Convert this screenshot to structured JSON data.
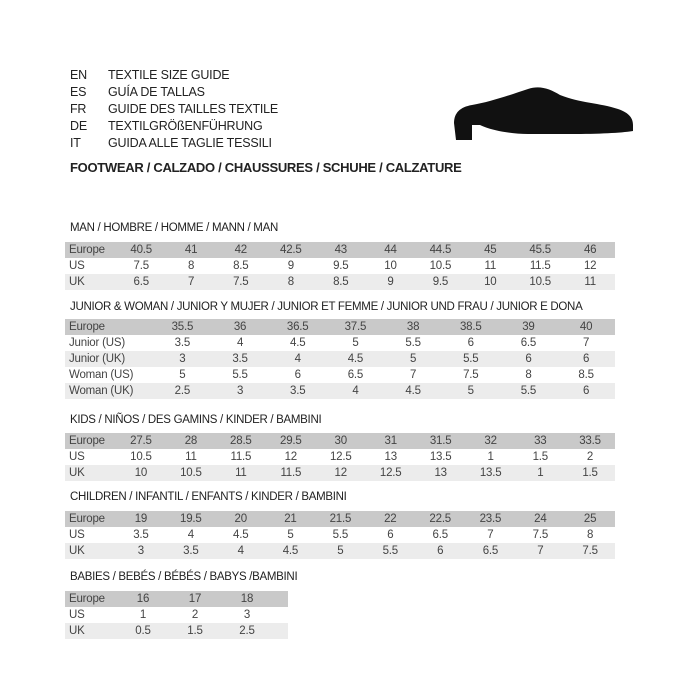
{
  "guide_titles": [
    {
      "code": "EN",
      "text": "TEXTILE SIZE GUIDE"
    },
    {
      "code": "ES",
      "text": "GUÍA DE TALLAS"
    },
    {
      "code": "FR",
      "text": "GUIDE DES TAILLES TEXTILE"
    },
    {
      "code": "DE",
      "text": "TEXTILGRÖßENFÜHRUNG"
    },
    {
      "code": "IT",
      "text": "GUIDA ALLE TAGLIE TESSILI"
    }
  ],
  "footwear_heading": "FOOTWEAR / CALZADO / CHAUSSURES / SCHUHE / CALZATURE",
  "shoe_icon": "dress-shoe-icon",
  "colors": {
    "header_row": "#c9c9c9",
    "alt_row": "#ececec"
  },
  "sections": [
    {
      "title": "MAN / HOMBRE / HOMME / MANN / MAN",
      "rows": [
        {
          "label": "Europe",
          "values": [
            "40.5",
            "41",
            "42",
            "42.5",
            "43",
            "44",
            "44.5",
            "45",
            "45.5",
            "46"
          ]
        },
        {
          "label": "US",
          "values": [
            "7.5",
            "8",
            "8.5",
            "9",
            "9.5",
            "10",
            "10.5",
            "11",
            "11.5",
            "12"
          ]
        },
        {
          "label": "UK",
          "values": [
            "6.5",
            "7",
            "7.5",
            "8",
            "8.5",
            "9",
            "9.5",
            "10",
            "10.5",
            "11"
          ]
        }
      ]
    },
    {
      "title": "JUNIOR & WOMAN / JUNIOR Y MUJER / JUNIOR ET FEMME / JUNIOR UND FRAU / JUNIOR E DONA",
      "rows": [
        {
          "label": "Europe",
          "values": [
            "35.5",
            "36",
            "36.5",
            "37.5",
            "38",
            "38.5",
            "39",
            "40"
          ]
        },
        {
          "label": "Junior (US)",
          "values": [
            "3.5",
            "4",
            "4.5",
            "5",
            "5.5",
            "6",
            "6.5",
            "7"
          ]
        },
        {
          "label": "Junior (UK)",
          "values": [
            "3",
            "3.5",
            "4",
            "4.5",
            "5",
            "5.5",
            "6",
            "6"
          ]
        },
        {
          "label": "Woman (US)",
          "values": [
            "5",
            "5.5",
            "6",
            "6.5",
            "7",
            "7.5",
            "8",
            "8.5"
          ]
        },
        {
          "label": "Woman (UK)",
          "values": [
            "2.5",
            "3",
            "3.5",
            "4",
            "4.5",
            "5",
            "5.5",
            "6"
          ]
        }
      ]
    },
    {
      "title": "KIDS / NIÑOS / DES GAMINS / KINDER / BAMBINI",
      "rows": [
        {
          "label": "Europe",
          "values": [
            "27.5",
            "28",
            "28.5",
            "29.5",
            "30",
            "31",
            "31.5",
            "32",
            "33",
            "33.5"
          ]
        },
        {
          "label": "US",
          "values": [
            "10.5",
            "11",
            "11.5",
            "12",
            "12.5",
            "13",
            "13.5",
            "1",
            "1.5",
            "2"
          ]
        },
        {
          "label": "UK",
          "values": [
            "10",
            "10.5",
            "11",
            "11.5",
            "12",
            "12.5",
            "13",
            "13.5",
            "1",
            "1.5"
          ]
        }
      ]
    },
    {
      "title": "CHILDREN / INFANTIL / ENFANTS / KINDER / BAMBINI",
      "rows": [
        {
          "label": "Europe",
          "values": [
            "19",
            "19.5",
            "20",
            "21",
            "21.5",
            "22",
            "22.5",
            "23.5",
            "24",
            "25"
          ]
        },
        {
          "label": "US",
          "values": [
            "3.5",
            "4",
            "4.5",
            "5",
            "5.5",
            "6",
            "6.5",
            "7",
            "7.5",
            "8"
          ]
        },
        {
          "label": "UK",
          "values": [
            "3",
            "3.5",
            "4",
            "4.5",
            "5",
            "5.5",
            "6",
            "6.5",
            "7",
            "7.5"
          ]
        }
      ]
    },
    {
      "title": "BABIES  / BEBÉS / BÉBÉS / BABYS /BAMBINI",
      "rows": [
        {
          "label": "Europe",
          "values": [
            "16",
            "17",
            "18"
          ]
        },
        {
          "label": "US",
          "values": [
            "1",
            "2",
            "3"
          ]
        },
        {
          "label": "UK",
          "values": [
            "0.5",
            "1.5",
            "2.5"
          ]
        }
      ]
    }
  ]
}
